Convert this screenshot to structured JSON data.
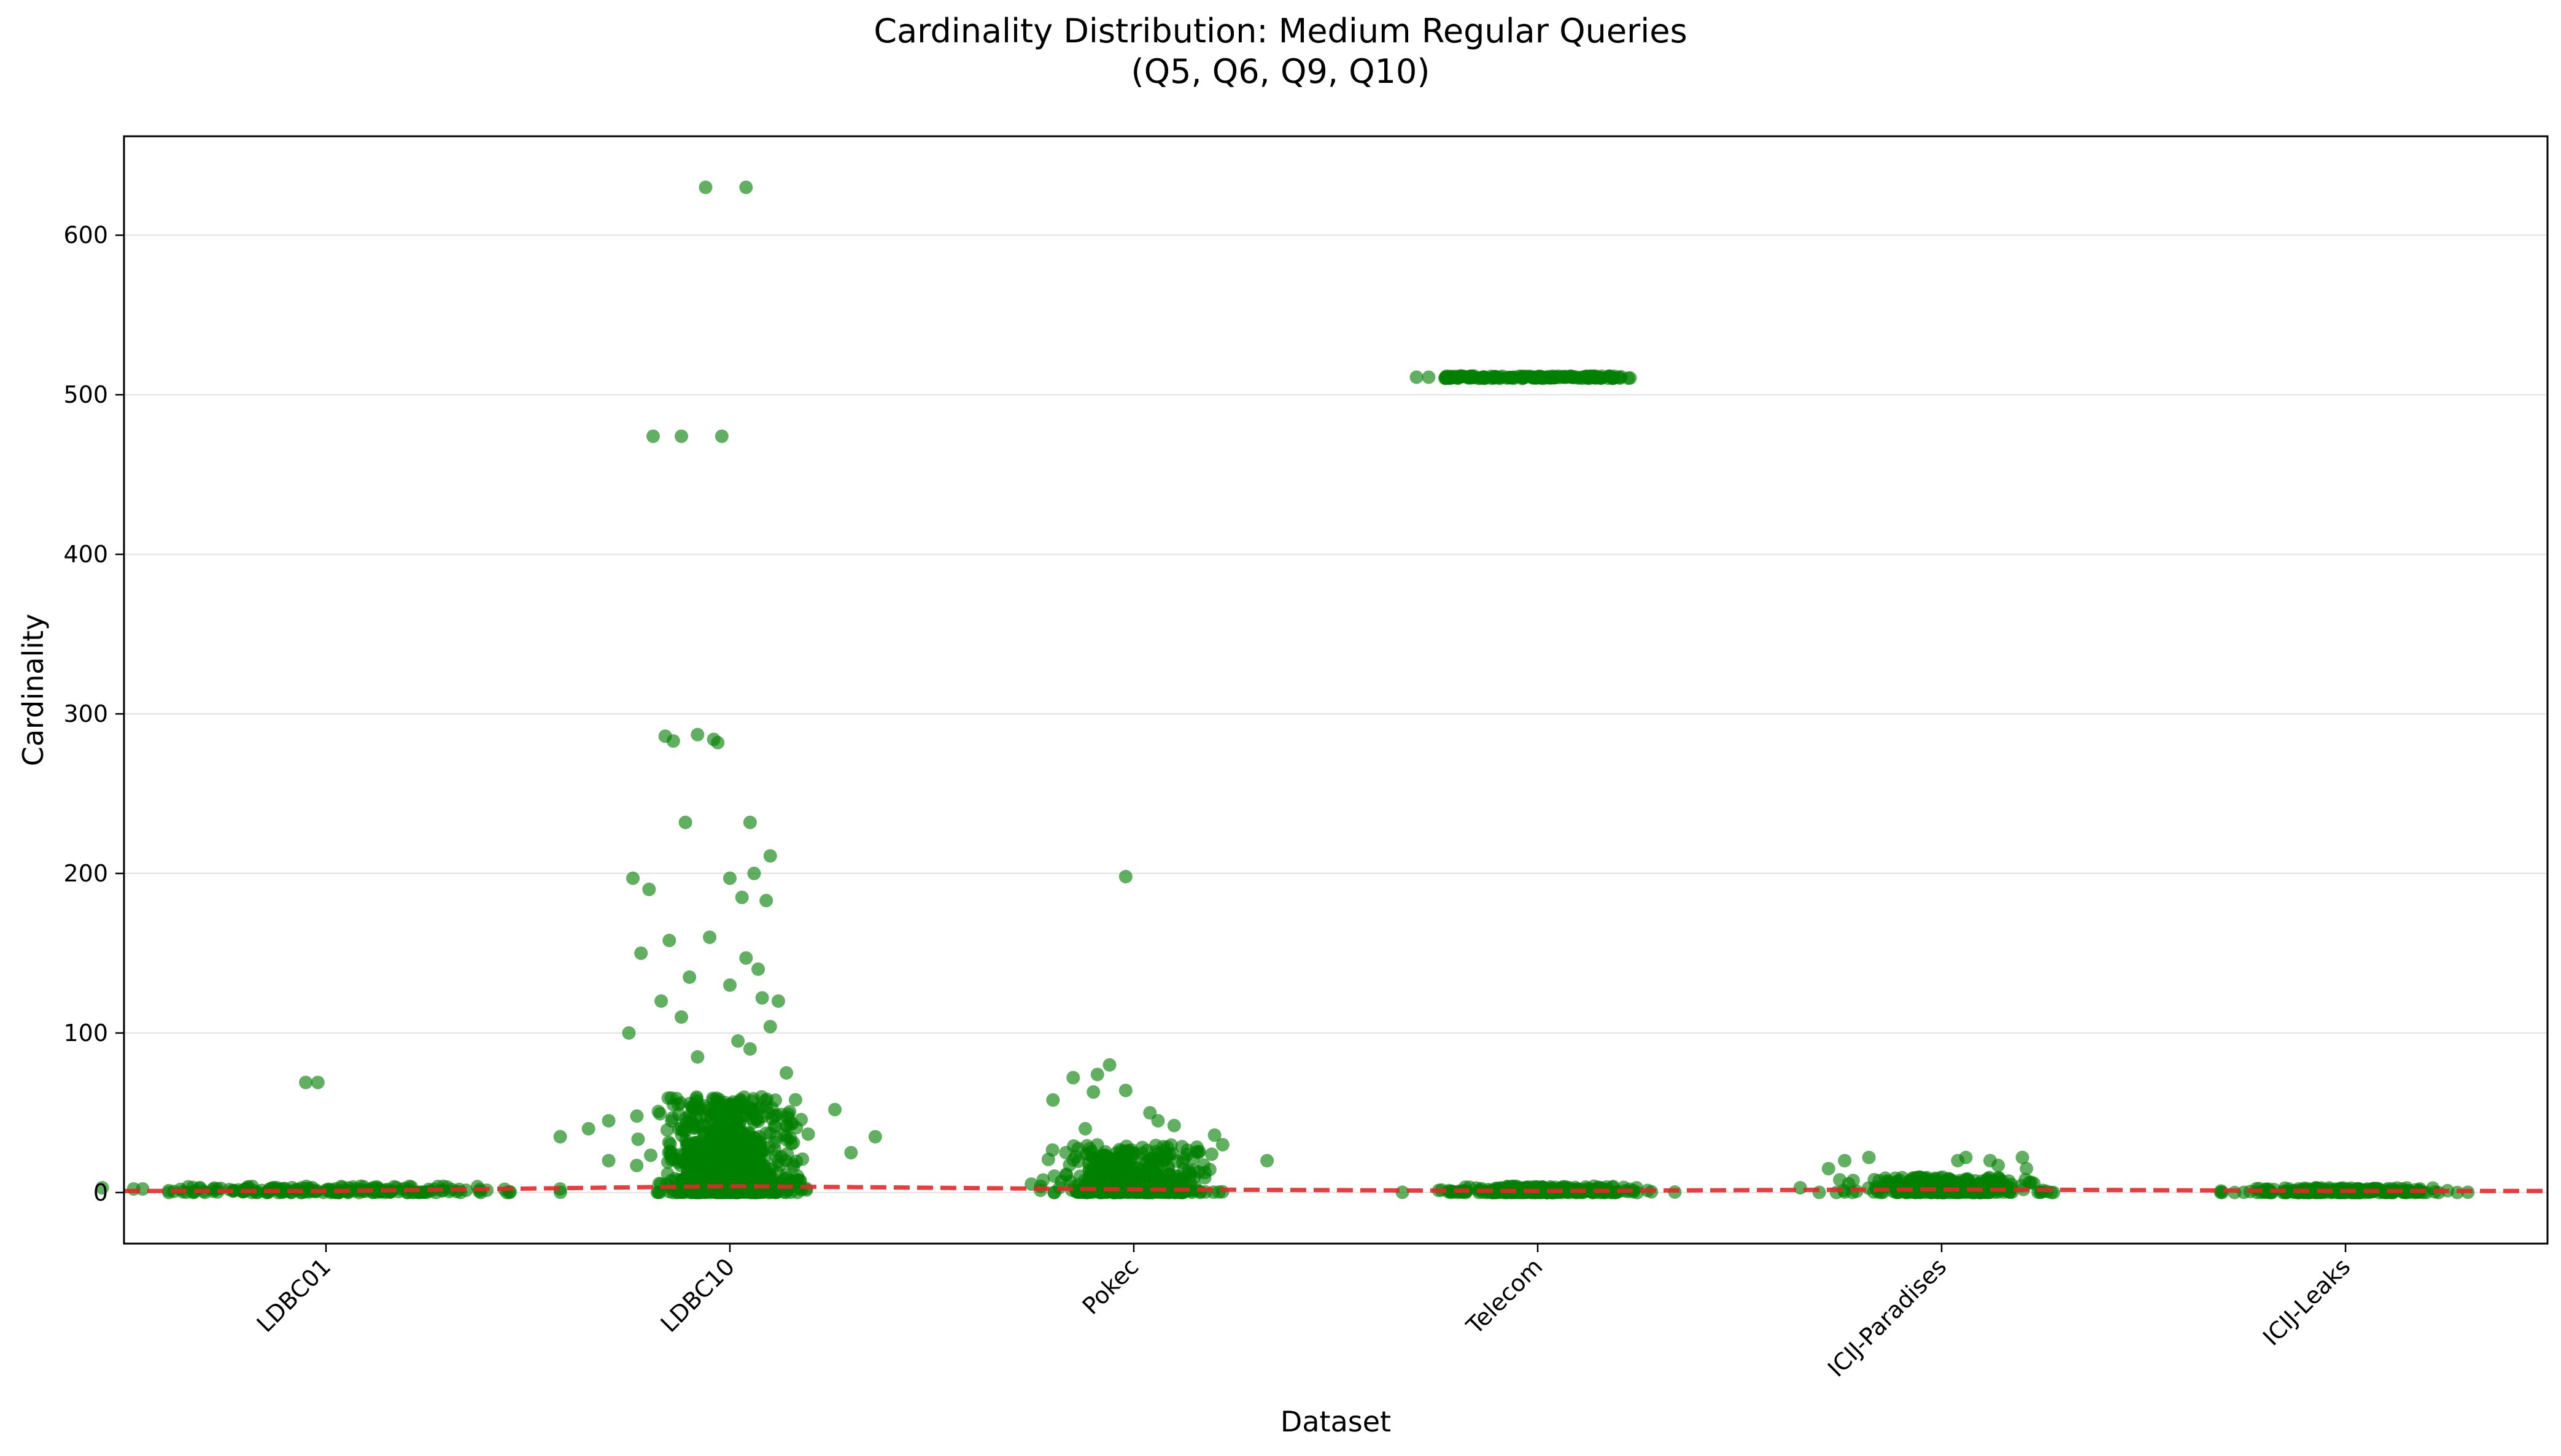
{
  "chart_data": {
    "type": "scatter",
    "title": "Cardinality Distribution: Medium Regular Queries",
    "subtitle": "(Q5, Q6, Q9, Q10)",
    "xlabel": "Dataset",
    "ylabel": "Cardinality",
    "categories": [
      "LDBC01",
      "LDBC10",
      "Pokec",
      "Telecom",
      "ICIJ-Paradises",
      "ICIJ-Leaks"
    ],
    "ylim": [
      -32,
      662
    ],
    "yticks": [
      0,
      100,
      200,
      300,
      400,
      500,
      600
    ],
    "grid": "y",
    "point_color": "#008000",
    "median_line_color": "#e8262a",
    "median_line": [
      1,
      4,
      2,
      1,
      2,
      1
    ],
    "series": [
      {
        "name": "LDBC01",
        "bulk": {
          "count": 180,
          "min": 0,
          "max": 4,
          "spread": 0.7
        },
        "points": [
          [
            -0.05,
            69
          ],
          [
            -0.02,
            69
          ],
          [
            -0.36,
            2
          ],
          [
            0.33,
            2
          ]
        ]
      },
      {
        "name": "LDBC10",
        "bulk": {
          "count": 900,
          "min": 0,
          "max": 60,
          "spread": 0.22
        },
        "points": [
          [
            -0.06,
            630
          ],
          [
            0.04,
            630
          ],
          [
            -0.19,
            474
          ],
          [
            -0.12,
            474
          ],
          [
            -0.02,
            474
          ],
          [
            -0.16,
            286
          ],
          [
            -0.14,
            283
          ],
          [
            -0.08,
            287
          ],
          [
            -0.04,
            284
          ],
          [
            -0.03,
            282
          ],
          [
            -0.11,
            232
          ],
          [
            0.05,
            232
          ],
          [
            -0.24,
            197
          ],
          [
            0.0,
            197
          ],
          [
            0.1,
            211
          ],
          [
            0.06,
            200
          ],
          [
            -0.2,
            190
          ],
          [
            0.03,
            185
          ],
          [
            0.09,
            183
          ],
          [
            -0.22,
            150
          ],
          [
            -0.15,
            158
          ],
          [
            -0.05,
            160
          ],
          [
            0.04,
            147
          ],
          [
            0.07,
            140
          ],
          [
            -0.1,
            135
          ],
          [
            0.0,
            130
          ],
          [
            -0.17,
            120
          ],
          [
            0.08,
            122
          ],
          [
            0.1,
            104
          ],
          [
            0.12,
            120
          ],
          [
            -0.25,
            100
          ],
          [
            -0.12,
            110
          ],
          [
            0.02,
            95
          ],
          [
            0.05,
            90
          ],
          [
            -0.08,
            85
          ],
          [
            0.14,
            75
          ],
          [
            -0.3,
            45
          ],
          [
            -0.35,
            40
          ],
          [
            0.3,
            25
          ],
          [
            0.36,
            35
          ],
          [
            0.26,
            52
          ],
          [
            -0.42,
            35
          ],
          [
            -0.3,
            20
          ]
        ]
      },
      {
        "name": "Pokec",
        "bulk": {
          "count": 450,
          "min": 0,
          "max": 30,
          "spread": 0.25
        },
        "points": [
          [
            -0.02,
            198
          ],
          [
            -0.06,
            80
          ],
          [
            -0.09,
            74
          ],
          [
            -0.15,
            72
          ],
          [
            -0.02,
            64
          ],
          [
            -0.1,
            63
          ],
          [
            -0.2,
            58
          ],
          [
            0.04,
            50
          ],
          [
            0.06,
            45
          ],
          [
            0.1,
            42
          ],
          [
            0.2,
            36
          ],
          [
            -0.12,
            40
          ],
          [
            0.33,
            20
          ],
          [
            0.22,
            30
          ],
          [
            0.16,
            25
          ]
        ]
      },
      {
        "name": "Telecom",
        "bulk": {
          "count": 300,
          "min": 0,
          "max": 4,
          "spread": 0.32
        },
        "points": [
          [
            -0.3,
            511
          ],
          [
            -0.27,
            511
          ]
        ],
        "top_band": {
          "count": 160,
          "value": 511,
          "spread": 0.23
        }
      },
      {
        "name": "ICIJ-Paradises",
        "bulk": {
          "count": 300,
          "min": 0,
          "max": 10,
          "spread": 0.3
        },
        "points": [
          [
            -0.24,
            20
          ],
          [
            -0.18,
            22
          ],
          [
            -0.28,
            15
          ],
          [
            0.06,
            22
          ],
          [
            0.12,
            20
          ],
          [
            0.14,
            17
          ],
          [
            0.2,
            22
          ],
          [
            0.21,
            15
          ],
          [
            0.04,
            20
          ],
          [
            -0.35,
            3
          ]
        ]
      },
      {
        "name": "ICIJ-Leaks",
        "bulk": {
          "count": 220,
          "min": 0,
          "max": 3,
          "spread": 0.33
        },
        "points": []
      }
    ]
  }
}
